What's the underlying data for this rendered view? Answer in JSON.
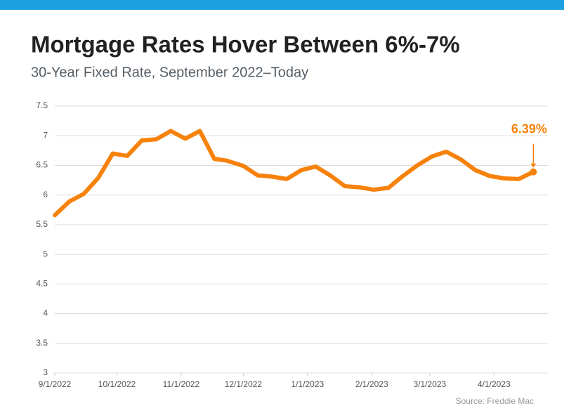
{
  "chart_data": {
    "type": "line",
    "title": "Mortgage Rates Hover Between 6%-7%",
    "subtitle": "30-Year Fixed Rate, September 2022–Today",
    "source": "Source: Freddie Mac",
    "annotation": "6.39%",
    "x": [
      "9/1/2022",
      "9/8/2022",
      "9/15/2022",
      "9/22/2022",
      "9/29/2022",
      "10/6/2022",
      "10/13/2022",
      "10/20/2022",
      "10/27/2022",
      "11/3/2022",
      "11/10/2022",
      "11/17/2022",
      "11/23/2022",
      "12/1/2022",
      "12/8/2022",
      "12/15/2022",
      "12/22/2022",
      "12/29/2022",
      "1/5/2023",
      "1/12/2023",
      "1/19/2023",
      "1/26/2023",
      "2/2/2023",
      "2/9/2023",
      "2/16/2023",
      "2/23/2023",
      "3/2/2023",
      "3/9/2023",
      "3/16/2023",
      "3/23/2023",
      "3/30/2023",
      "4/6/2023",
      "4/13/2023",
      "4/20/2023"
    ],
    "values": [
      5.66,
      5.89,
      6.02,
      6.29,
      6.7,
      6.66,
      6.92,
      6.94,
      7.08,
      6.95,
      7.08,
      6.61,
      6.58,
      6.49,
      6.33,
      6.31,
      6.27,
      6.42,
      6.48,
      6.33,
      6.15,
      6.13,
      6.09,
      6.12,
      6.32,
      6.5,
      6.65,
      6.73,
      6.6,
      6.42,
      6.32,
      6.28,
      6.27,
      6.39
    ],
    "color": "#f7820b",
    "xlim": [
      "9/1/2022",
      "4/27/2023"
    ],
    "xticks": [
      "9/1/2022",
      "10/1/2022",
      "11/1/2022",
      "12/1/2022",
      "1/1/2023",
      "2/1/2023",
      "3/1/2023",
      "4/1/2023"
    ],
    "ylim": [
      3,
      7.5
    ],
    "yticks": [
      3,
      3.5,
      4,
      4.5,
      5,
      5.5,
      6,
      6.5,
      7,
      7.5
    ],
    "grid": true
  }
}
